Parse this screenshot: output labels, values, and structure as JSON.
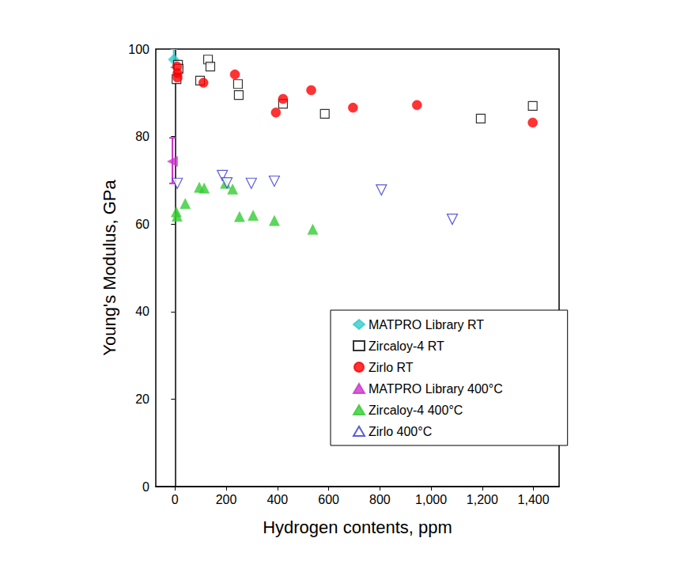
{
  "chart_data": {
    "type": "scatter",
    "x_label": "Hydrogen contents, ppm",
    "y_label": "Young's Modulus, GPa",
    "xlim": [
      -75,
      1500
    ],
    "xticks": [
      0,
      200,
      400,
      600,
      800,
      1000,
      1200,
      1400
    ],
    "ylim": [
      0,
      100
    ],
    "yticks": [
      0,
      20,
      40,
      60,
      80,
      100
    ],
    "grid": false,
    "legend": "lower right",
    "series": [
      {
        "name": "MATPRO Library RT",
        "color": "#33cccc",
        "marker": "diamond",
        "x": [
          -5
        ],
        "values": [
          97.6
        ],
        "errors": [
          [
            95.8,
            100
          ]
        ]
      },
      {
        "name": "Zircaloy-4 RT",
        "color": "#000000",
        "marker": "square-open",
        "x": [
          6,
          12,
          14,
          98,
          129,
          138,
          246,
          249,
          422,
          585,
          1194,
          1397
        ],
        "values": [
          93.1,
          96.4,
          95.5,
          92.8,
          97.6,
          96.0,
          92.0,
          89.5,
          87.5,
          85.2,
          84.1,
          87.0
        ]
      },
      {
        "name": "Zirlo RT",
        "color": "#ff0000",
        "marker": "circle",
        "x": [
          8,
          10,
          10,
          111,
          234,
          394,
          422,
          532,
          695,
          945,
          1397
        ],
        "values": [
          96.0,
          94.5,
          93.5,
          92.3,
          94.2,
          85.5,
          88.6,
          90.6,
          86.6,
          87.2,
          83.2
        ]
      },
      {
        "name": "MATPRO Library 400°C",
        "color": "#cc33cc",
        "marker": "triangle-left",
        "x": [
          -10
        ],
        "values": [
          74.3
        ],
        "errors": [
          [
            69.3,
            79.7
          ]
        ]
      },
      {
        "name": "Zircaloy-4 400°C",
        "color": "#33cc33",
        "marker": "triangle",
        "x": [
          5,
          8,
          40,
          95,
          114,
          197,
          225,
          252,
          305,
          388,
          538
        ],
        "values": [
          62.8,
          61.8,
          64.7,
          68.4,
          68.2,
          69.3,
          68.0,
          61.7,
          62.0,
          60.8,
          58.8
        ]
      },
      {
        "name": "Zirlo 400°C",
        "color": "#3333cc",
        "marker": "triangle-down-open",
        "x": [
          9,
          185,
          203,
          298,
          388,
          806,
          1083
        ],
        "values": [
          69.3,
          71.1,
          69.4,
          69.3,
          69.8,
          67.8,
          61.1
        ]
      }
    ]
  }
}
